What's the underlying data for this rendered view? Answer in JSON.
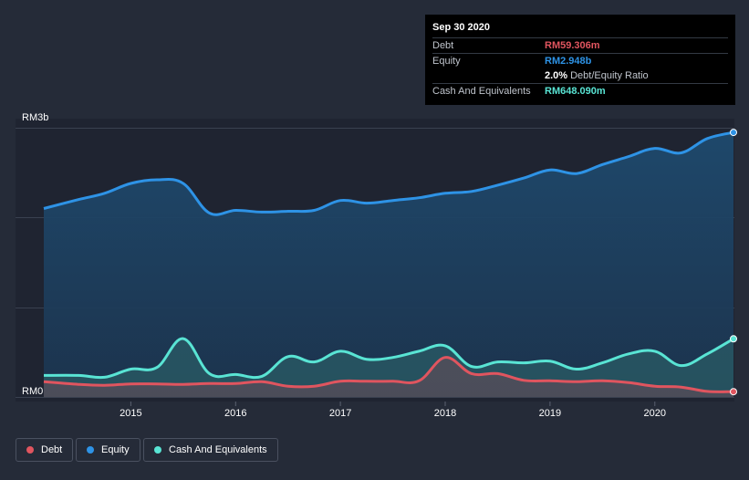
{
  "tooltip": {
    "date": "Sep 30 2020",
    "debt_label": "Debt",
    "debt_value": "RM59.306m",
    "equity_label": "Equity",
    "equity_value": "RM2.948b",
    "ratio_value": "2.0%",
    "ratio_label": "Debt/Equity Ratio",
    "cash_label": "Cash And Equivalents",
    "cash_value": "RM648.090m"
  },
  "legend": {
    "debt": "Debt",
    "equity": "Equity",
    "cash": "Cash And Equivalents"
  },
  "colors": {
    "debt": "#e0555f",
    "equity": "#2e93e6",
    "cash": "#59e4d4",
    "background": "#252b38"
  },
  "chart_data": {
    "type": "area",
    "ylim": [
      0,
      3000
    ],
    "y_unit": "RM millions",
    "y_tick_labels": [
      "RM3b",
      "RM0"
    ],
    "x_tick_labels": [
      "2015",
      "2016",
      "2017",
      "2018",
      "2019",
      "2020"
    ],
    "xlim": [
      2014.17,
      2020.75
    ],
    "series": [
      {
        "name": "Equity",
        "x": [
          2014.17,
          2014.5,
          2014.75,
          2015.0,
          2015.25,
          2015.5,
          2015.75,
          2016.0,
          2016.25,
          2016.5,
          2016.75,
          2017.0,
          2017.25,
          2017.5,
          2017.75,
          2018.0,
          2018.25,
          2018.5,
          2018.75,
          2019.0,
          2019.25,
          2019.5,
          2019.75,
          2020.0,
          2020.25,
          2020.5,
          2020.75
        ],
        "values": [
          2100,
          2200,
          2270,
          2380,
          2420,
          2380,
          2050,
          2080,
          2060,
          2070,
          2080,
          2190,
          2160,
          2190,
          2220,
          2270,
          2290,
          2360,
          2440,
          2530,
          2490,
          2590,
          2680,
          2770,
          2720,
          2880,
          2948
        ]
      },
      {
        "name": "Cash And Equivalents",
        "x": [
          2014.17,
          2014.5,
          2014.75,
          2015.0,
          2015.25,
          2015.5,
          2015.75,
          2016.0,
          2016.25,
          2016.5,
          2016.75,
          2017.0,
          2017.25,
          2017.5,
          2017.75,
          2018.0,
          2018.25,
          2018.5,
          2018.75,
          2019.0,
          2019.25,
          2019.5,
          2019.75,
          2020.0,
          2020.25,
          2020.5,
          2020.75
        ],
        "values": [
          240,
          240,
          220,
          310,
          330,
          650,
          260,
          250,
          230,
          450,
          390,
          510,
          420,
          440,
          510,
          570,
          340,
          390,
          380,
          400,
          310,
          380,
          480,
          510,
          350,
          480,
          648
        ]
      },
      {
        "name": "Debt",
        "x": [
          2014.17,
          2014.5,
          2014.75,
          2015.0,
          2015.25,
          2015.5,
          2015.75,
          2016.0,
          2016.25,
          2016.5,
          2016.75,
          2017.0,
          2017.25,
          2017.5,
          2017.75,
          2018.0,
          2018.25,
          2018.5,
          2018.75,
          2019.0,
          2019.25,
          2019.5,
          2019.75,
          2020.0,
          2020.25,
          2020.5,
          2020.75
        ],
        "values": [
          170,
          140,
          130,
          145,
          145,
          140,
          150,
          150,
          170,
          120,
          120,
          175,
          175,
          175,
          180,
          440,
          260,
          260,
          185,
          180,
          170,
          180,
          160,
          120,
          110,
          62,
          59
        ]
      }
    ]
  }
}
